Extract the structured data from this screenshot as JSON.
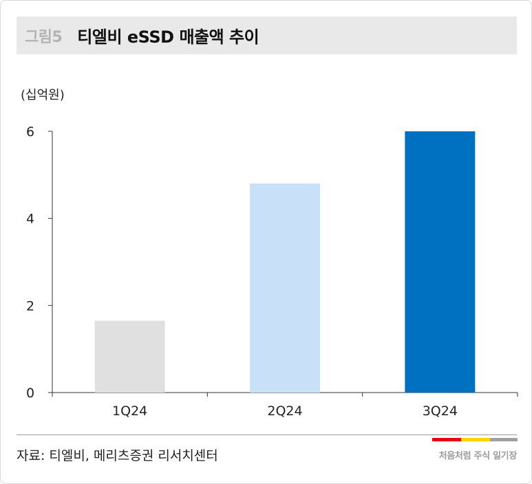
{
  "header": {
    "figure_number": "그림5",
    "title": "티엘비 eSSD 매출액 추이"
  },
  "chart_data": {
    "type": "bar",
    "unit_label": "(십억원)",
    "categories": [
      "1Q24",
      "2Q24",
      "3Q24"
    ],
    "values": [
      1.65,
      4.8,
      6.0
    ],
    "bar_colors": [
      "#e0e0e0",
      "#c8e1f8",
      "#0070c0"
    ],
    "ylim": [
      0,
      6
    ],
    "yticks": [
      0,
      2,
      4,
      6
    ],
    "grid": false,
    "legend": "none"
  },
  "footer": {
    "source": "자료:  티엘비, 메리츠증권 리서치센터",
    "brand": "처음처럼 주식 일기장",
    "brand_colors": [
      "#e60012",
      "#ffd400",
      "#a0a0a0"
    ]
  }
}
